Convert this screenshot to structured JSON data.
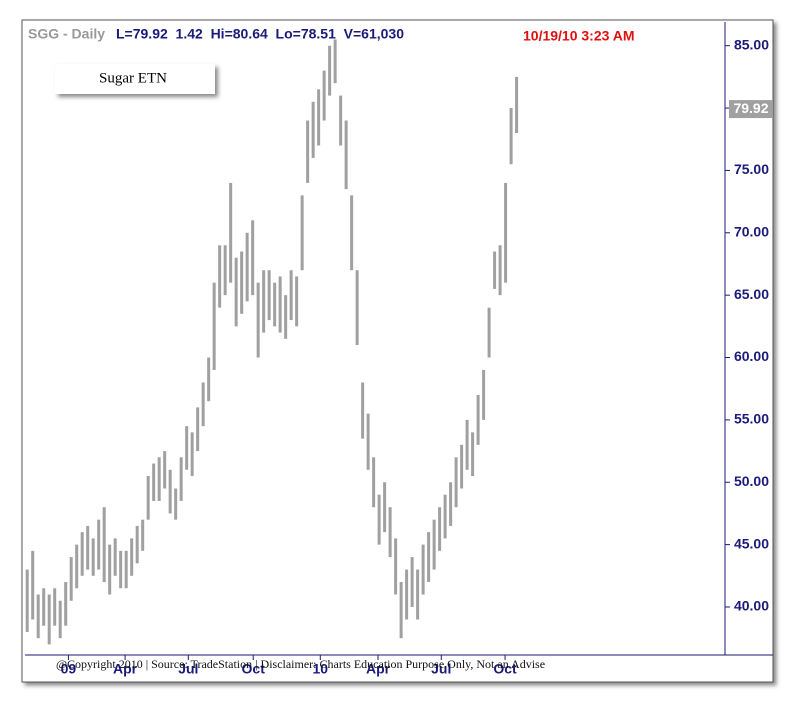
{
  "chart_data": {
    "type": "range_bar",
    "symbol": "SGG - Daily",
    "quote": "L=79.92  1.42  Hi=80.64  Lo=78.51  V=61,030",
    "timestamp": "10/19/10 3:23 AM",
    "annotation": "Sugar ETN",
    "footer": "@Copyright 2010 | Source: TradeStation | Disclaimer: Charts Education Purpose Only, Not an Advise",
    "last_price": 79.92,
    "color": "#a0a0a0",
    "x": [
      0,
      1,
      2,
      3,
      4,
      5,
      6,
      7,
      8,
      9,
      10,
      11,
      12,
      13,
      14,
      15,
      16,
      17,
      18,
      19,
      20,
      21,
      22,
      23,
      24,
      25,
      26,
      27,
      28,
      29,
      30,
      31,
      32,
      33,
      34,
      35,
      36,
      37,
      38,
      39,
      40,
      41,
      42,
      43,
      44,
      45,
      46,
      47,
      48,
      49,
      50,
      51,
      52,
      53,
      54,
      55,
      56,
      57,
      58,
      59,
      60,
      61,
      62,
      63,
      64,
      65,
      66,
      67,
      68,
      69,
      70,
      71,
      72,
      73,
      74,
      75,
      76,
      77,
      78,
      79,
      80,
      81,
      82,
      83,
      84,
      85,
      86,
      87,
      88,
      89
    ],
    "high": [
      43,
      44.5,
      41,
      41.5,
      41,
      41.5,
      40.5,
      42,
      44,
      45,
      46,
      46.5,
      45.5,
      47,
      48,
      45,
      45.5,
      44.5,
      44.5,
      45.5,
      46.5,
      47,
      50.5,
      51.5,
      52,
      52.5,
      51,
      49.5,
      52,
      54.5,
      54,
      56,
      58,
      60,
      66,
      69,
      69,
      74,
      68,
      68.5,
      70,
      71,
      66,
      67,
      67,
      66,
      66.5,
      65,
      67,
      66.5,
      73,
      79,
      80.5,
      81.5,
      83,
      85,
      85.5,
      81,
      79,
      73,
      67,
      58,
      55.5,
      52,
      49,
      50,
      48,
      45.5,
      42,
      43,
      44,
      43,
      45,
      46,
      47,
      48,
      49,
      50,
      52,
      53,
      55,
      54,
      57,
      59,
      64,
      68.5,
      69,
      74,
      80,
      82.5
    ],
    "low": [
      38,
      39,
      37.5,
      38.5,
      37,
      38.5,
      37.5,
      38.5,
      40.5,
      41.5,
      42.5,
      43,
      42.5,
      43,
      42,
      41,
      42.5,
      41.5,
      41.5,
      42.5,
      43.5,
      44.5,
      47,
      48.5,
      48.5,
      49.5,
      47.5,
      47,
      48.5,
      51,
      50.5,
      52.5,
      54.5,
      56.5,
      59,
      64,
      65,
      66,
      62.5,
      63.5,
      64.5,
      65,
      60,
      62,
      63,
      62.5,
      62,
      61.5,
      63,
      62.5,
      67,
      74,
      76,
      77,
      79,
      81,
      82,
      77,
      73.5,
      67,
      61,
      53.5,
      51,
      48,
      45,
      46,
      44,
      41,
      37.5,
      39,
      40,
      39,
      41,
      42,
      43,
      44.5,
      45.5,
      46.5,
      48,
      49.5,
      51,
      50.5,
      53,
      55,
      60,
      65.5,
      65,
      66,
      75.5,
      78
    ],
    "xlim": [
      -0.4,
      126.9
    ],
    "ylim": [
      36.15,
      86.9
    ],
    "xticks": [
      {
        "value": 7.5,
        "label": "09"
      },
      {
        "value": 17.8,
        "label": "Apr"
      },
      {
        "value": 29.3,
        "label": "Jul"
      },
      {
        "value": 41.1,
        "label": "Oct"
      },
      {
        "value": 53.3,
        "label": "10"
      },
      {
        "value": 63.8,
        "label": "Apr"
      },
      {
        "value": 75.3,
        "label": "Jul"
      },
      {
        "value": 86.9,
        "label": "Oct"
      }
    ],
    "yticks": [
      {
        "value": 40,
        "label": "40.00"
      },
      {
        "value": 45,
        "label": "45.00"
      },
      {
        "value": 50,
        "label": "50.00"
      },
      {
        "value": 55,
        "label": "55.00"
      },
      {
        "value": 60,
        "label": "60.00"
      },
      {
        "value": 65,
        "label": "65.00"
      },
      {
        "value": 70,
        "label": "70.00"
      },
      {
        "value": 75,
        "label": "75.00"
      },
      {
        "value": 80,
        "label": "80.00"
      },
      {
        "value": 85,
        "label": "85.00"
      }
    ]
  }
}
